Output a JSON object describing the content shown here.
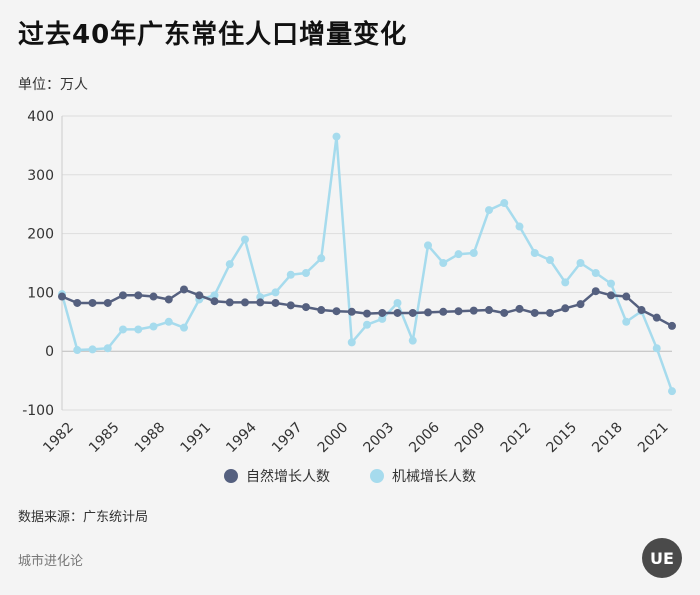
{
  "header": {
    "title": "过去40年广东常住人口增量变化"
  },
  "unit_label": "单位：万人",
  "source_label": "数据来源：广东统计局",
  "brand_label": "城市进化论",
  "logo_text": "UE",
  "chart_data": {
    "type": "line",
    "title": "过去40年广东常住人口增量变化",
    "ylabel": "单位：万人",
    "ylim": [
      -100,
      400
    ],
    "yticks": [
      400,
      300,
      200,
      100,
      0,
      -100
    ],
    "grid": true,
    "legend_position": "bottom",
    "x": [
      1982,
      1983,
      1984,
      1985,
      1986,
      1987,
      1988,
      1989,
      1990,
      1991,
      1992,
      1993,
      1994,
      1995,
      1996,
      1997,
      1998,
      1999,
      2000,
      2001,
      2002,
      2003,
      2004,
      2005,
      2006,
      2007,
      2008,
      2009,
      2010,
      2011,
      2012,
      2013,
      2014,
      2015,
      2016,
      2017,
      2018,
      2019,
      2020,
      2021,
      2022
    ],
    "xticks": [
      "1982",
      "1985",
      "1988",
      "1991",
      "1994",
      "1997",
      "2000",
      "2003",
      "2006",
      "2009",
      "2012",
      "2015",
      "2018",
      "2021"
    ],
    "series": [
      {
        "name": "自然增长人数",
        "color": "#55607f",
        "values": [
          93,
          82,
          82,
          82,
          95,
          95,
          93,
          88,
          105,
          95,
          85,
          83,
          83,
          83,
          82,
          78,
          75,
          70,
          68,
          67,
          64,
          65,
          65,
          65,
          66,
          67,
          68,
          69,
          70,
          65,
          72,
          65,
          65,
          73,
          80,
          102,
          95,
          93,
          70,
          57,
          43
        ]
      },
      {
        "name": "机械增长人数",
        "color": "#a6dbed",
        "values": [
          97,
          2,
          3,
          5,
          37,
          37,
          42,
          50,
          40,
          88,
          95,
          148,
          190,
          92,
          100,
          130,
          133,
          158,
          365,
          15,
          45,
          55,
          82,
          18,
          180,
          150,
          165,
          167,
          240,
          252,
          212,
          167,
          155,
          117,
          150,
          133,
          115,
          50,
          68,
          5,
          -68
        ]
      }
    ]
  }
}
